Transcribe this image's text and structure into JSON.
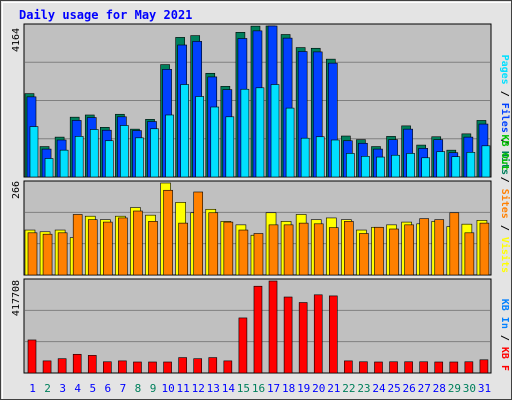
{
  "title": "Daily usage for May 2021",
  "colors": {
    "background": "#e4e4e4",
    "panel": "#c0c0c0",
    "title": "#0000ff",
    "hits": "#00805c",
    "files": "#0040ff",
    "pages": "#00e0ff",
    "visits": "#ffff00",
    "sites": "#ff8000",
    "kbin": "#0080ff",
    "kbout": "#00c000",
    "kbf": "#ff0000",
    "weekend_day": "#00805c",
    "weekday": "#0000ff"
  },
  "chart_data": [
    {
      "type": "bar",
      "panel": "hits-files-pages",
      "categories": [
        "1",
        "2",
        "3",
        "4",
        "5",
        "6",
        "7",
        "8",
        "9",
        "10",
        "11",
        "12",
        "13",
        "14",
        "15",
        "16",
        "17",
        "18",
        "19",
        "20",
        "21",
        "22",
        "23",
        "24",
        "25",
        "26",
        "27",
        "28",
        "29",
        "30",
        "31"
      ],
      "weekend_days": [
        "2",
        "8",
        "9",
        "15",
        "16",
        "22",
        "23",
        "29",
        "30"
      ],
      "ymax_label": "4164",
      "ylim": [
        0,
        4164
      ],
      "legend": [
        {
          "label": "Hits",
          "color": "#00805c"
        },
        {
          "label": "Files",
          "color": "#0040ff"
        },
        {
          "label": "Pages",
          "color": "#00e0ff"
        }
      ],
      "legend_separator": " / ",
      "series": [
        {
          "name": "Hits",
          "values": [
            2300,
            840,
            1100,
            1650,
            1710,
            1370,
            1730,
            1320,
            1590,
            3100,
            3850,
            3900,
            2860,
            2500,
            3990,
            4160,
            4164,
            3930,
            3570,
            3550,
            3250,
            1130,
            1030,
            840,
            1120,
            1410,
            880,
            1110,
            740,
            1190,
            1560
          ]
        },
        {
          "name": "Files",
          "values": [
            2210,
            770,
            1020,
            1560,
            1640,
            1290,
            1660,
            1280,
            1530,
            2970,
            3640,
            3740,
            2760,
            2410,
            3820,
            4030,
            4164,
            3830,
            3460,
            3450,
            3140,
            1000,
            930,
            770,
            1030,
            1320,
            790,
            1030,
            670,
            1100,
            1460
          ]
        },
        {
          "name": "Pages",
          "values": [
            1390,
            510,
            740,
            1120,
            1310,
            1000,
            1420,
            1080,
            1330,
            1710,
            2550,
            2220,
            1930,
            1660,
            2420,
            2460,
            2550,
            1900,
            1070,
            1110,
            1020,
            650,
            570,
            550,
            600,
            650,
            530,
            700,
            560,
            680,
            860
          ]
        }
      ]
    },
    {
      "type": "bar",
      "panel": "visits-sites",
      "categories": [
        "1",
        "2",
        "3",
        "4",
        "5",
        "6",
        "7",
        "8",
        "9",
        "10",
        "11",
        "12",
        "13",
        "14",
        "15",
        "16",
        "17",
        "18",
        "19",
        "20",
        "21",
        "22",
        "23",
        "24",
        "25",
        "26",
        "27",
        "28",
        "29",
        "30",
        "31"
      ],
      "ymax_label": "266",
      "ylim": [
        0,
        266
      ],
      "legend": [
        {
          "label": "Visits",
          "color": "#ffff00"
        },
        {
          "label": "Sites",
          "color": "#ff8000"
        },
        {
          "label": "KB Out",
          "color": "#00c000"
        }
      ],
      "legend_separator": " / ",
      "series": [
        {
          "name": "Visits",
          "values": [
            130,
            125,
            130,
            108,
            170,
            160,
            170,
            195,
            173,
            266,
            210,
            180,
            190,
            155,
            145,
            115,
            180,
            155,
            175,
            160,
            165,
            160,
            130,
            138,
            145,
            153,
            148,
            155,
            140,
            147,
            158
          ]
        },
        {
          "name": "Sites",
          "values": [
            122,
            118,
            122,
            175,
            160,
            153,
            165,
            185,
            155,
            245,
            150,
            240,
            180,
            153,
            130,
            120,
            145,
            145,
            150,
            148,
            137,
            155,
            120,
            138,
            133,
            145,
            163,
            160,
            180,
            122,
            150
          ]
        }
      ]
    },
    {
      "type": "bar",
      "panel": "kbytes",
      "categories": [
        "1",
        "2",
        "3",
        "4",
        "5",
        "6",
        "7",
        "8",
        "9",
        "10",
        "11",
        "12",
        "13",
        "14",
        "15",
        "16",
        "17",
        "18",
        "19",
        "20",
        "21",
        "22",
        "23",
        "24",
        "25",
        "26",
        "27",
        "28",
        "29",
        "30",
        "31"
      ],
      "ymax_label": "417708",
      "ylim": [
        0,
        417708
      ],
      "legend": [
        {
          "label": "KB F",
          "color": "#ff0000"
        },
        {
          "label": "KB In",
          "color": "#0080ff"
        }
      ],
      "legend_separator": " / ",
      "series": [
        {
          "name": "KB F",
          "values": [
            150000,
            55000,
            65000,
            85000,
            80000,
            51000,
            55000,
            50000,
            50000,
            50000,
            70000,
            65000,
            70000,
            55000,
            250000,
            394000,
            417708,
            345000,
            320000,
            355000,
            350000,
            55000,
            51000,
            50000,
            51000,
            51000,
            51000,
            50000,
            50000,
            51000,
            60000
          ]
        }
      ]
    }
  ]
}
